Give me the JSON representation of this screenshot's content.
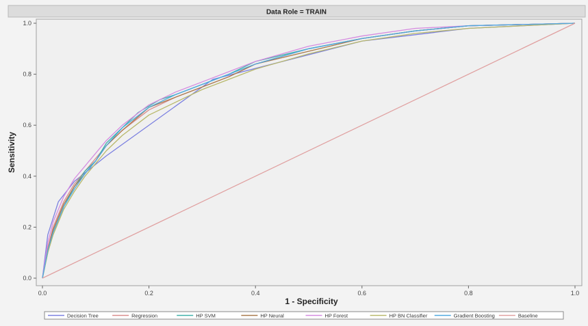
{
  "chart_data": {
    "type": "line",
    "title": "Data Role = TRAIN",
    "xlabel": "1 - Specificity",
    "ylabel": "Sensitivity",
    "xlim": [
      0,
      1
    ],
    "ylim": [
      0,
      1
    ],
    "x_ticks": [
      "0.0",
      "0.2",
      "0.4",
      "0.6",
      "0.8",
      "1.0"
    ],
    "y_ticks": [
      "0.0",
      "0.2",
      "0.4",
      "0.6",
      "0.8",
      "1.0"
    ],
    "grid": false,
    "legend_position": "bottom",
    "series": [
      {
        "name": "Decision Tree",
        "color": "#7a7fe0",
        "points": [
          [
            0,
            0
          ],
          [
            0.01,
            0.17
          ],
          [
            0.03,
            0.3
          ],
          [
            0.06,
            0.38
          ],
          [
            0.12,
            0.48
          ],
          [
            0.32,
            0.78
          ],
          [
            0.6,
            0.93
          ],
          [
            0.8,
            0.98
          ],
          [
            1,
            1
          ]
        ]
      },
      {
        "name": "Regression",
        "color": "#d98c8c",
        "points": [
          [
            0,
            0
          ],
          [
            0.01,
            0.12
          ],
          [
            0.02,
            0.2
          ],
          [
            0.04,
            0.3
          ],
          [
            0.06,
            0.37
          ],
          [
            0.08,
            0.42
          ],
          [
            0.1,
            0.47
          ],
          [
            0.12,
            0.52
          ],
          [
            0.15,
            0.58
          ],
          [
            0.2,
            0.66
          ],
          [
            0.25,
            0.71
          ],
          [
            0.3,
            0.75
          ],
          [
            0.35,
            0.79
          ],
          [
            0.4,
            0.84
          ],
          [
            0.5,
            0.9
          ],
          [
            0.6,
            0.94
          ],
          [
            0.7,
            0.97
          ],
          [
            0.8,
            0.99
          ],
          [
            1,
            1
          ]
        ]
      },
      {
        "name": "HP SVM",
        "color": "#3fb0a8",
        "points": [
          [
            0,
            0
          ],
          [
            0.01,
            0.1
          ],
          [
            0.02,
            0.18
          ],
          [
            0.04,
            0.28
          ],
          [
            0.06,
            0.36
          ],
          [
            0.08,
            0.42
          ],
          [
            0.1,
            0.46
          ],
          [
            0.12,
            0.53
          ],
          [
            0.15,
            0.59
          ],
          [
            0.18,
            0.65
          ],
          [
            0.22,
            0.7
          ],
          [
            0.25,
            0.72
          ],
          [
            0.3,
            0.76
          ],
          [
            0.35,
            0.8
          ],
          [
            0.4,
            0.85
          ],
          [
            0.5,
            0.9
          ],
          [
            0.6,
            0.94
          ],
          [
            0.7,
            0.97
          ],
          [
            0.8,
            0.99
          ],
          [
            1,
            1
          ]
        ]
      },
      {
        "name": "HP Neural",
        "color": "#a8784a",
        "points": [
          [
            0,
            0
          ],
          [
            0.01,
            0.11
          ],
          [
            0.02,
            0.19
          ],
          [
            0.04,
            0.29
          ],
          [
            0.06,
            0.36
          ],
          [
            0.08,
            0.41
          ],
          [
            0.1,
            0.46
          ],
          [
            0.12,
            0.52
          ],
          [
            0.15,
            0.58
          ],
          [
            0.2,
            0.67
          ],
          [
            0.25,
            0.71
          ],
          [
            0.3,
            0.75
          ],
          [
            0.35,
            0.79
          ],
          [
            0.4,
            0.84
          ],
          [
            0.5,
            0.89
          ],
          [
            0.6,
            0.94
          ],
          [
            0.7,
            0.97
          ],
          [
            0.8,
            0.99
          ],
          [
            1,
            1
          ]
        ]
      },
      {
        "name": "HP Forest",
        "color": "#d58be0",
        "points": [
          [
            0,
            0
          ],
          [
            0.01,
            0.14
          ],
          [
            0.02,
            0.22
          ],
          [
            0.04,
            0.32
          ],
          [
            0.06,
            0.39
          ],
          [
            0.08,
            0.44
          ],
          [
            0.1,
            0.49
          ],
          [
            0.12,
            0.54
          ],
          [
            0.15,
            0.6
          ],
          [
            0.2,
            0.68
          ],
          [
            0.25,
            0.73
          ],
          [
            0.3,
            0.77
          ],
          [
            0.35,
            0.81
          ],
          [
            0.4,
            0.85
          ],
          [
            0.5,
            0.91
          ],
          [
            0.6,
            0.95
          ],
          [
            0.7,
            0.98
          ],
          [
            0.8,
            0.99
          ],
          [
            1,
            1
          ]
        ]
      },
      {
        "name": "HP BN Classifier",
        "color": "#b8b86a",
        "points": [
          [
            0,
            0
          ],
          [
            0.01,
            0.1
          ],
          [
            0.02,
            0.17
          ],
          [
            0.04,
            0.27
          ],
          [
            0.06,
            0.34
          ],
          [
            0.08,
            0.4
          ],
          [
            0.1,
            0.45
          ],
          [
            0.12,
            0.5
          ],
          [
            0.15,
            0.56
          ],
          [
            0.2,
            0.64
          ],
          [
            0.25,
            0.69
          ],
          [
            0.3,
            0.74
          ],
          [
            0.35,
            0.78
          ],
          [
            0.4,
            0.82
          ],
          [
            0.5,
            0.88
          ],
          [
            0.6,
            0.93
          ],
          [
            0.7,
            0.96
          ],
          [
            0.8,
            0.98
          ],
          [
            1,
            1
          ]
        ]
      },
      {
        "name": "Gradient Boosting",
        "color": "#4fa8e0",
        "points": [
          [
            0,
            0
          ],
          [
            0.01,
            0.11
          ],
          [
            0.02,
            0.18
          ],
          [
            0.04,
            0.28
          ],
          [
            0.06,
            0.35
          ],
          [
            0.08,
            0.41
          ],
          [
            0.1,
            0.46
          ],
          [
            0.12,
            0.52
          ],
          [
            0.15,
            0.59
          ],
          [
            0.2,
            0.67
          ],
          [
            0.25,
            0.72
          ],
          [
            0.3,
            0.76
          ],
          [
            0.35,
            0.8
          ],
          [
            0.4,
            0.84
          ],
          [
            0.5,
            0.9
          ],
          [
            0.6,
            0.94
          ],
          [
            0.7,
            0.97
          ],
          [
            0.8,
            0.99
          ],
          [
            1,
            1
          ]
        ]
      },
      {
        "name": "Baseline",
        "color": "#e0a0a0",
        "points": [
          [
            0,
            0
          ],
          [
            1,
            1
          ]
        ]
      }
    ]
  }
}
